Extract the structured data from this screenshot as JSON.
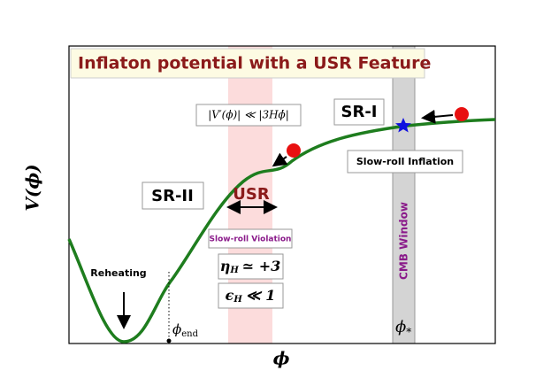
{
  "title": "Inflaton potential with a USR Feature",
  "y_axis_label": {
    "symbol": "V(ϕ)"
  },
  "x_axis_label": {
    "symbol": "ϕ"
  },
  "annotations": {
    "gradient_condition": "|V′(ϕ)| ≪ |3Hϕ̇|",
    "sr1": "SR-I",
    "slow_roll_inflation": "Slow-roll Inflation",
    "sr2": "SR-II",
    "usr": "USR",
    "slow_roll_violation": "Slow-roll Violation",
    "eta": {
      "symbol": "η",
      "subscript": "H",
      "relation": "≃ +3"
    },
    "epsilon": {
      "symbol": "ϵ",
      "subscript": "H",
      "relation": "≪ 1"
    },
    "cmb_window": "CMB Window",
    "phi_star": {
      "symbol": "ϕ",
      "subscript": "*"
    },
    "reheating": "Reheating",
    "phi_end": {
      "symbol": "ϕ",
      "subscript": "end"
    }
  }
}
